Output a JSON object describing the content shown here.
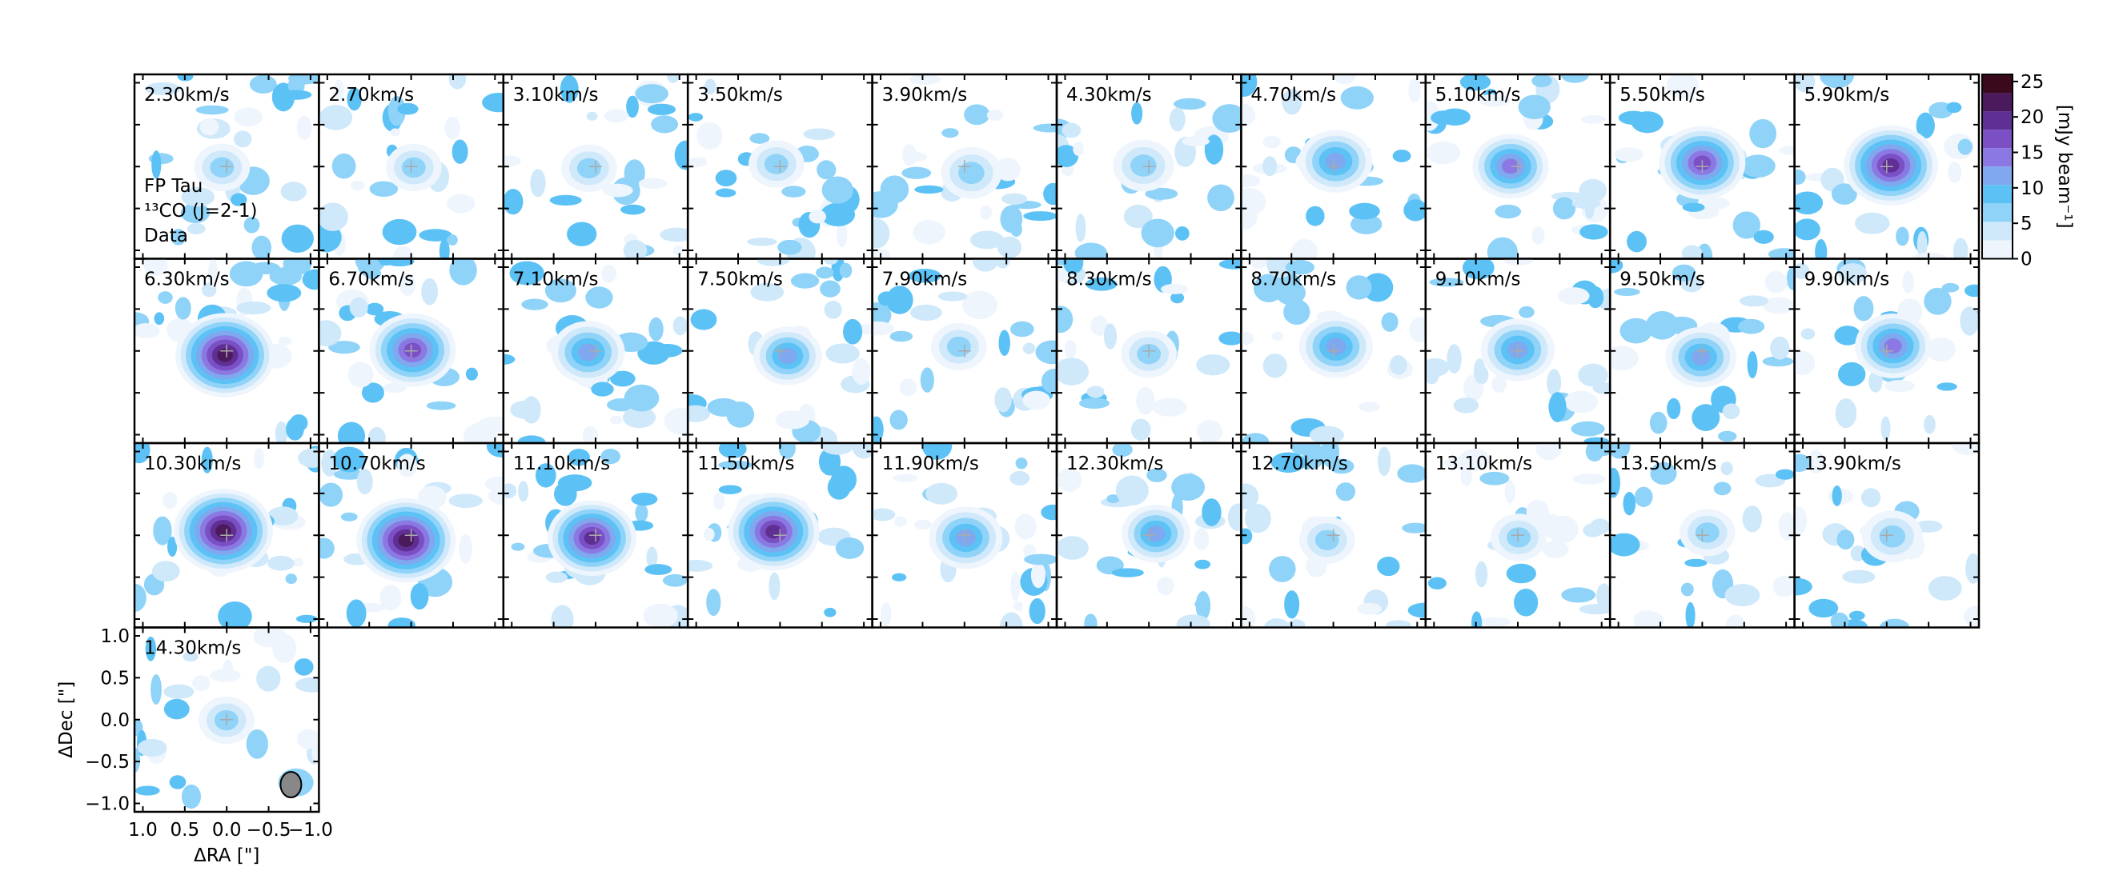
{
  "chart_data": {
    "type": "channel-map",
    "channels": [
      "2.30km/s",
      "2.70km/s",
      "3.10km/s",
      "3.50km/s",
      "3.90km/s",
      "4.30km/s",
      "4.70km/s",
      "5.10km/s",
      "5.50km/s",
      "5.90km/s",
      "6.30km/s",
      "6.70km/s",
      "7.10km/s",
      "7.50km/s",
      "7.90km/s",
      "8.30km/s",
      "8.70km/s",
      "9.10km/s",
      "9.50km/s",
      "9.90km/s",
      "10.30km/s",
      "10.70km/s",
      "11.10km/s",
      "11.50km/s",
      "11.90km/s",
      "12.30km/s",
      "12.70km/s",
      "13.10km/s",
      "13.50km/s",
      "13.90km/s",
      "14.30km/s"
    ],
    "peak_values": [
      8,
      8,
      8,
      8,
      10,
      10,
      15,
      16,
      20,
      23,
      25,
      20,
      15,
      13,
      8,
      8,
      15,
      15,
      14,
      16,
      25,
      25,
      21,
      22,
      15,
      13,
      8,
      8,
      8,
      10,
      8
    ],
    "annotations": [
      "FP Tau",
      "¹³CO (J=2-1)",
      "Data"
    ],
    "xlabel": "ΔRA [\"]",
    "ylabel": "ΔDec [\"]",
    "xlim": [
      1.1,
      -1.1
    ],
    "ylim": [
      -1.1,
      1.1
    ],
    "xticks": [
      {
        "value": 1.0,
        "label": "1.0"
      },
      {
        "value": 0.5,
        "label": "0.5"
      },
      {
        "value": 0.0,
        "label": "0.0"
      },
      {
        "value": -0.5,
        "label": "−0.5"
      },
      {
        "value": -1.0,
        "label": "−1.0"
      }
    ],
    "yticks": [
      {
        "value": 1.0,
        "label": "1.0"
      },
      {
        "value": 0.5,
        "label": "0.5"
      },
      {
        "value": 0.0,
        "label": "0.0"
      },
      {
        "value": -0.5,
        "label": "−0.5"
      },
      {
        "value": -1.0,
        "label": "−1.0"
      }
    ],
    "colorbar": {
      "label": "[mJy beam⁻¹]",
      "lim": [
        0,
        26
      ],
      "ticks": [
        0,
        5,
        10,
        15,
        20,
        25
      ],
      "colors": [
        "#eef5fc",
        "#cfe9fb",
        "#8fd3f8",
        "#5cc2f5",
        "#7fa8ef",
        "#8c78e2",
        "#7a50c4",
        "#5f2f94",
        "#4a1a5c",
        "#3a0a1c"
      ]
    }
  }
}
